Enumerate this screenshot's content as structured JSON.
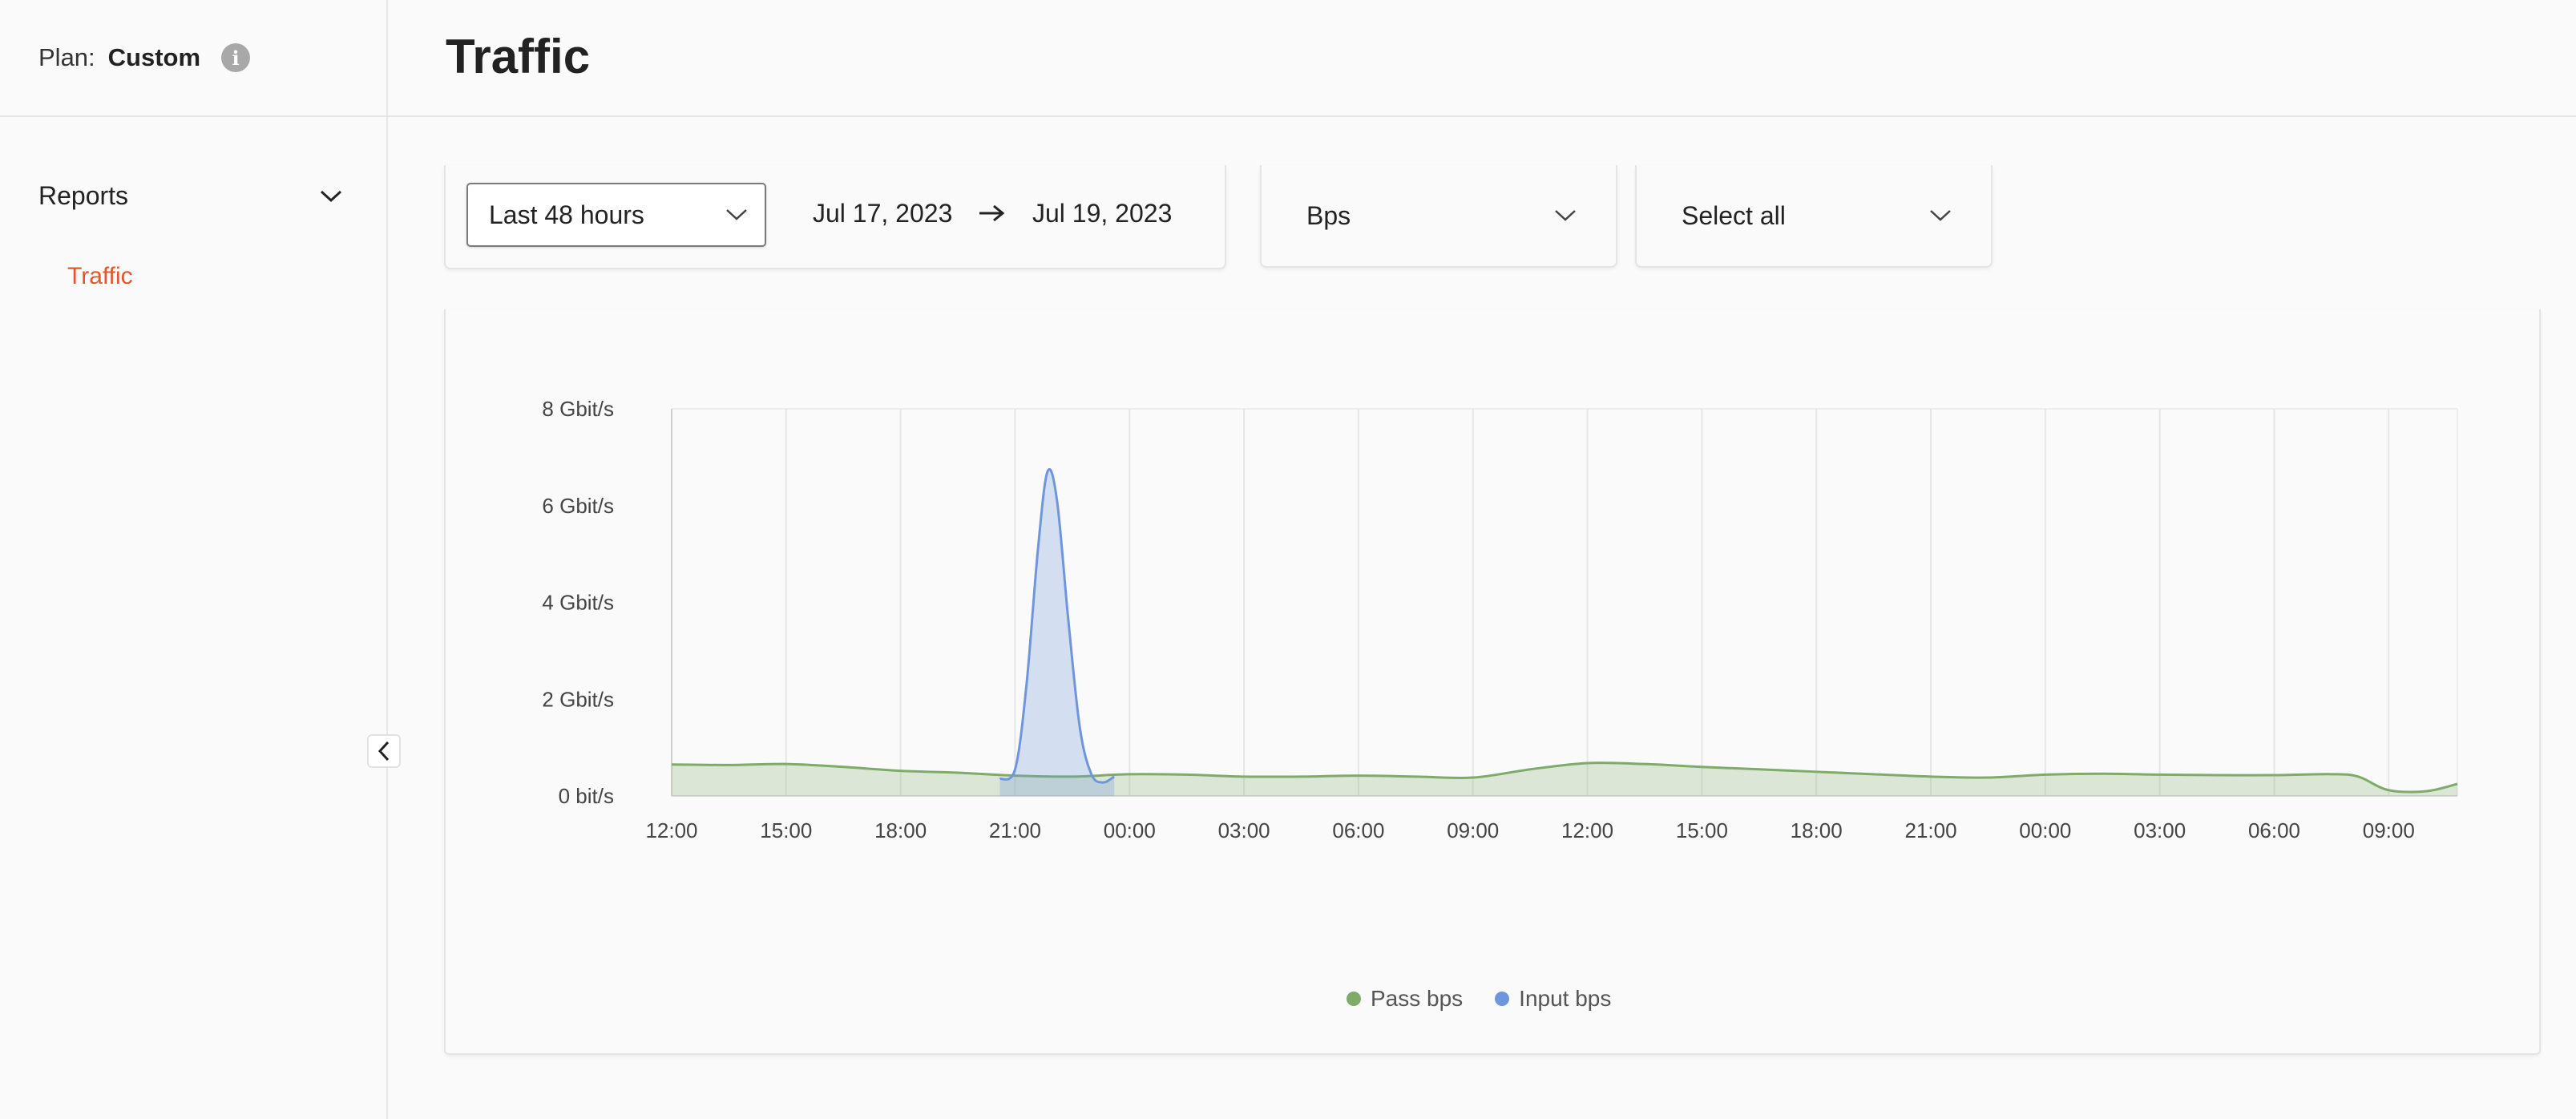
{
  "sidebar": {
    "plan_label": "Plan:",
    "plan_value": "Custom",
    "section_title": "Reports",
    "items": [
      {
        "label": "Traffic",
        "active": true
      }
    ]
  },
  "header": {
    "title": "Traffic"
  },
  "filters": {
    "time_range": "Last 48 hours",
    "date_from": "Jul 17, 2023",
    "date_to": "Jul 19, 2023",
    "unit": "Bps",
    "selection": "Select all"
  },
  "colors": {
    "accent": "#e0562e",
    "pass": "#7fab6a",
    "input": "#6f96dc"
  },
  "chart_data": {
    "type": "area",
    "y_ticks": [
      "0 bit/s",
      "2 Gbit/s",
      "4 Gbit/s",
      "6 Gbit/s",
      "8 Gbit/s"
    ],
    "ylim": [
      0,
      8
    ],
    "grid": true,
    "legend_position": "bottom-center",
    "x_tick_labels": [
      "12:00",
      "15:00",
      "18:00",
      "21:00",
      "00:00",
      "03:00",
      "06:00",
      "09:00",
      "12:00",
      "15:00",
      "18:00",
      "21:00",
      "00:00",
      "03:00",
      "06:00",
      "09:00"
    ],
    "x_hours": [
      0,
      3,
      6,
      9,
      12,
      15,
      18,
      21,
      24,
      27,
      30,
      33,
      36,
      39,
      42,
      45
    ],
    "x_max": 46.8,
    "series": [
      {
        "name": "Pass bps",
        "color": "#7fab6a",
        "x": [
          0,
          1.5,
          3,
          4.5,
          6,
          7.5,
          9,
          10.5,
          12,
          13.5,
          15,
          16.5,
          18,
          19.5,
          21,
          22.5,
          24,
          25.5,
          27,
          28.5,
          30,
          31.5,
          33,
          34.5,
          36,
          37.5,
          39,
          40.5,
          42,
          43.5,
          44.2,
          45,
          46,
          46.8
        ],
        "y": [
          0.65,
          0.64,
          0.66,
          0.6,
          0.52,
          0.48,
          0.42,
          0.4,
          0.45,
          0.44,
          0.4,
          0.4,
          0.42,
          0.4,
          0.38,
          0.55,
          0.68,
          0.66,
          0.6,
          0.55,
          0.5,
          0.45,
          0.4,
          0.38,
          0.44,
          0.46,
          0.44,
          0.43,
          0.43,
          0.45,
          0.4,
          0.12,
          0.1,
          0.25
        ]
      },
      {
        "name": "Input bps",
        "color": "#6f96dc",
        "x": [
          8.6,
          9.0,
          9.3,
          9.6,
          9.85,
          10.1,
          10.4,
          10.7,
          11.0,
          11.3,
          11.6
        ],
        "y": [
          0.35,
          0.55,
          2.3,
          5.1,
          6.7,
          6.1,
          3.6,
          1.4,
          0.45,
          0.28,
          0.4
        ]
      }
    ]
  }
}
